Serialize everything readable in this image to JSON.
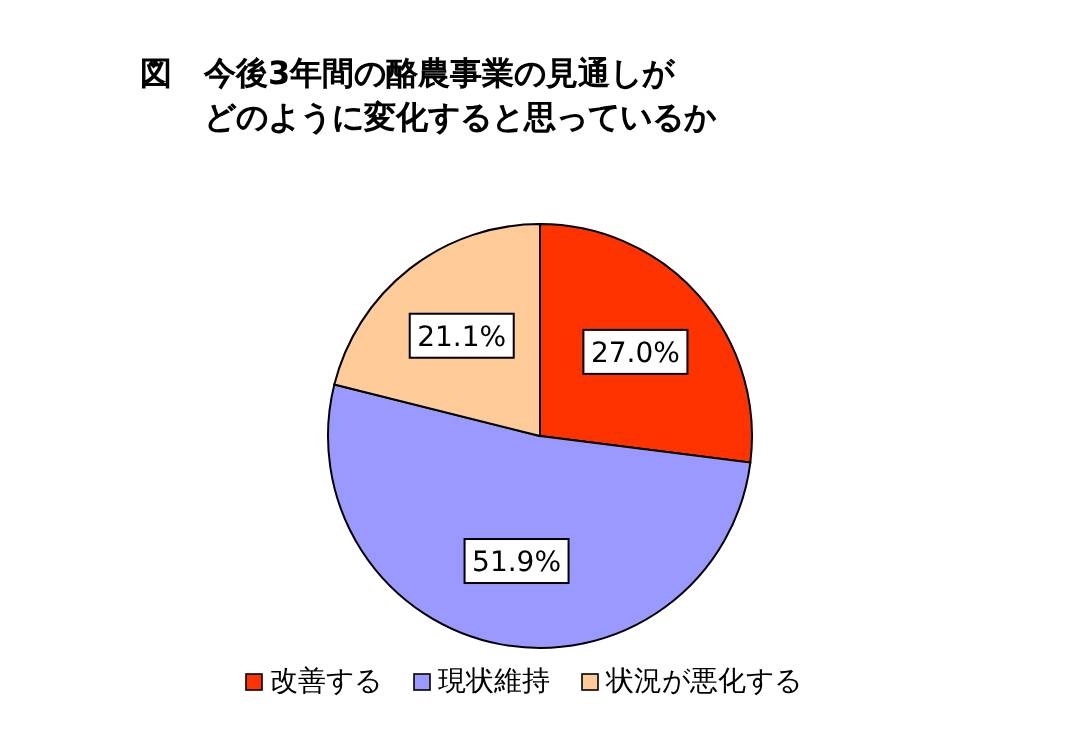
{
  "chart_data": {
    "type": "pie",
    "title": "図　今後3年間の酪農事業の見通しが",
    "subtitle": "どのように変化すると思っているか",
    "categories": [
      "改善する",
      "現状維持",
      "状況が悪化する"
    ],
    "values": [
      27.0,
      51.9,
      21.1
    ],
    "colors": [
      "#ff3300",
      "#9999ff",
      "#ffcc99"
    ],
    "value_labels": [
      "27.0%",
      "51.9%",
      "21.1%"
    ],
    "legend": "bottom"
  }
}
